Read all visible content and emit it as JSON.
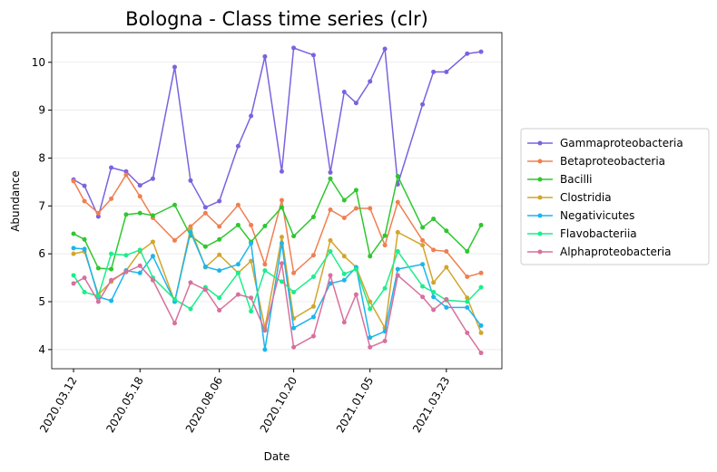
{
  "chart_data": {
    "type": "line",
    "title": "Bologna - Class time series (clr)",
    "xlabel": "Date",
    "ylabel": "Abundance",
    "x": [
      "2020.03.12",
      "2020.03.23",
      "2020.04.06",
      "2020.04.19",
      "2020.05.04",
      "2020.05.18",
      "2020.05.31",
      "2020.06.22",
      "2020.07.08",
      "2020.07.23",
      "2020.08.06",
      "2020.08.25",
      "2020.09.07",
      "2020.09.21",
      "2020.10.08",
      "2020.10.20",
      "2020.11.09",
      "2020.11.26",
      "2020.12.10",
      "2020.12.22",
      "2021.01.05",
      "2021.01.20",
      "2021.02.02",
      "2021.02.27",
      "2021.03.10",
      "2021.03.23",
      "2021.04.13",
      "2021.04.27"
    ],
    "xlim": [
      "2020.02.19",
      "2021.05.18"
    ],
    "xticks": [
      "2020.03.12",
      "2020.05.18",
      "2020.08.06",
      "2020.10.20",
      "2021.01.05",
      "2021.03.23"
    ],
    "ylim": [
      3.6,
      10.62
    ],
    "yticks": [
      4,
      5,
      6,
      7,
      8,
      9,
      10
    ],
    "grid": true,
    "legend": "right",
    "series": [
      {
        "name": "Gammaproteobacteria",
        "color": "#7b62e0",
        "values": [
          7.55,
          7.42,
          6.78,
          7.8,
          7.72,
          7.43,
          7.57,
          9.9,
          7.53,
          6.97,
          7.1,
          8.25,
          8.88,
          10.12,
          7.72,
          10.3,
          10.15,
          7.7,
          9.38,
          9.15,
          9.6,
          10.28,
          7.45,
          9.12,
          9.8,
          9.8,
          10.18,
          10.22
        ]
      },
      {
        "name": "Betaproteobacteria",
        "color": "#f07f50",
        "values": [
          7.52,
          7.1,
          6.85,
          7.15,
          7.65,
          7.2,
          6.75,
          6.28,
          6.57,
          6.85,
          6.57,
          7.02,
          6.6,
          5.78,
          7.12,
          5.6,
          5.97,
          6.92,
          6.75,
          6.95,
          6.95,
          6.18,
          7.08,
          6.28,
          6.08,
          6.05,
          5.52,
          5.6
        ]
      },
      {
        "name": "Bacilli",
        "color": "#2fc72f",
        "values": [
          6.42,
          6.3,
          5.7,
          5.68,
          6.82,
          6.85,
          6.8,
          7.02,
          6.38,
          6.15,
          6.3,
          6.6,
          6.25,
          6.58,
          6.97,
          6.37,
          6.77,
          7.57,
          7.12,
          7.33,
          5.95,
          6.38,
          7.62,
          6.55,
          6.73,
          6.48,
          6.05,
          6.6
        ]
      },
      {
        "name": "Clostridia",
        "color": "#d2a52c",
        "values": [
          6.0,
          6.05,
          5.15,
          5.42,
          5.65,
          6.05,
          6.25,
          5.0,
          6.52,
          5.72,
          5.98,
          5.6,
          5.85,
          4.45,
          6.35,
          4.65,
          4.9,
          6.28,
          5.95,
          5.72,
          5.0,
          4.45,
          6.45,
          6.18,
          5.4,
          5.72,
          5.08,
          4.35
        ]
      },
      {
        "name": "Negativicutes",
        "color": "#1ab6ee",
        "values": [
          6.12,
          6.1,
          5.1,
          5.02,
          5.65,
          5.6,
          5.95,
          5.0,
          6.45,
          5.73,
          5.65,
          5.78,
          6.22,
          4.0,
          6.22,
          4.45,
          4.68,
          5.38,
          5.45,
          5.72,
          4.25,
          4.38,
          5.68,
          5.78,
          5.1,
          4.88,
          4.88,
          4.5
        ]
      },
      {
        "name": "Flavobacteriia",
        "color": "#1bee8a",
        "values": [
          5.55,
          5.2,
          5.12,
          6.0,
          5.97,
          6.08,
          5.5,
          5.05,
          4.85,
          5.3,
          5.08,
          5.6,
          4.8,
          5.65,
          5.42,
          5.2,
          5.52,
          6.05,
          5.58,
          5.68,
          4.85,
          5.28,
          6.05,
          5.32,
          5.2,
          5.03,
          5.0,
          5.3
        ]
      },
      {
        "name": "Alphaproteobacteria",
        "color": "#d8709c",
        "values": [
          5.38,
          5.5,
          5.0,
          5.45,
          5.62,
          5.75,
          5.45,
          4.55,
          5.4,
          5.25,
          4.82,
          5.15,
          5.08,
          4.4,
          5.8,
          4.05,
          4.28,
          5.55,
          4.57,
          5.15,
          4.05,
          4.18,
          5.55,
          5.1,
          4.83,
          5.05,
          4.35,
          3.93
        ]
      }
    ]
  }
}
